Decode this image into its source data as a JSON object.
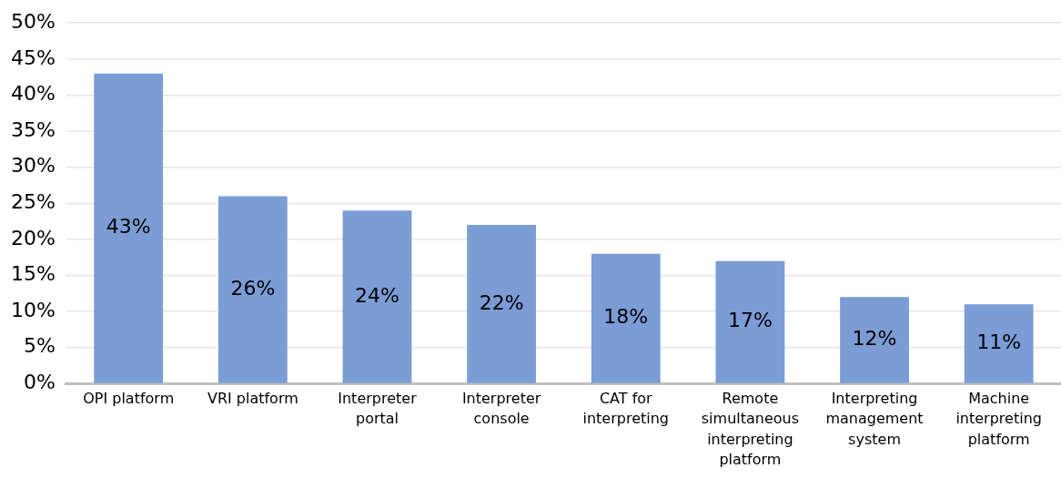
{
  "chart_data": {
    "type": "bar",
    "categories": [
      "OPI platform",
      "VRI platform",
      "Interpreter portal",
      "Interpreter console",
      "CAT for interpreting",
      "Remote simultaneous interpreting platform",
      "Interpreting management system",
      "Machine interpreting platform"
    ],
    "values": [
      43,
      26,
      24,
      22,
      18,
      17,
      12,
      11
    ],
    "color": "#7b9cd5",
    "ylim": [
      0,
      50
    ],
    "yticks": [
      {
        "value": 0,
        "label": "0%"
      },
      {
        "value": 5,
        "label": "5%"
      },
      {
        "value": 10,
        "label": "10%"
      },
      {
        "value": 15,
        "label": "15%"
      },
      {
        "value": 20,
        "label": "20%"
      },
      {
        "value": 25,
        "label": "25%"
      },
      {
        "value": 30,
        "label": "30%"
      },
      {
        "value": 35,
        "label": "35%"
      },
      {
        "value": 40,
        "label": "40%"
      },
      {
        "value": 45,
        "label": "45%"
      },
      {
        "value": 50,
        "label": "50%"
      }
    ],
    "value_labels": [
      "43%",
      "26%",
      "24%",
      "22%",
      "18%",
      "17%",
      "12%",
      "11%"
    ],
    "grid": "y",
    "legend": false
  }
}
